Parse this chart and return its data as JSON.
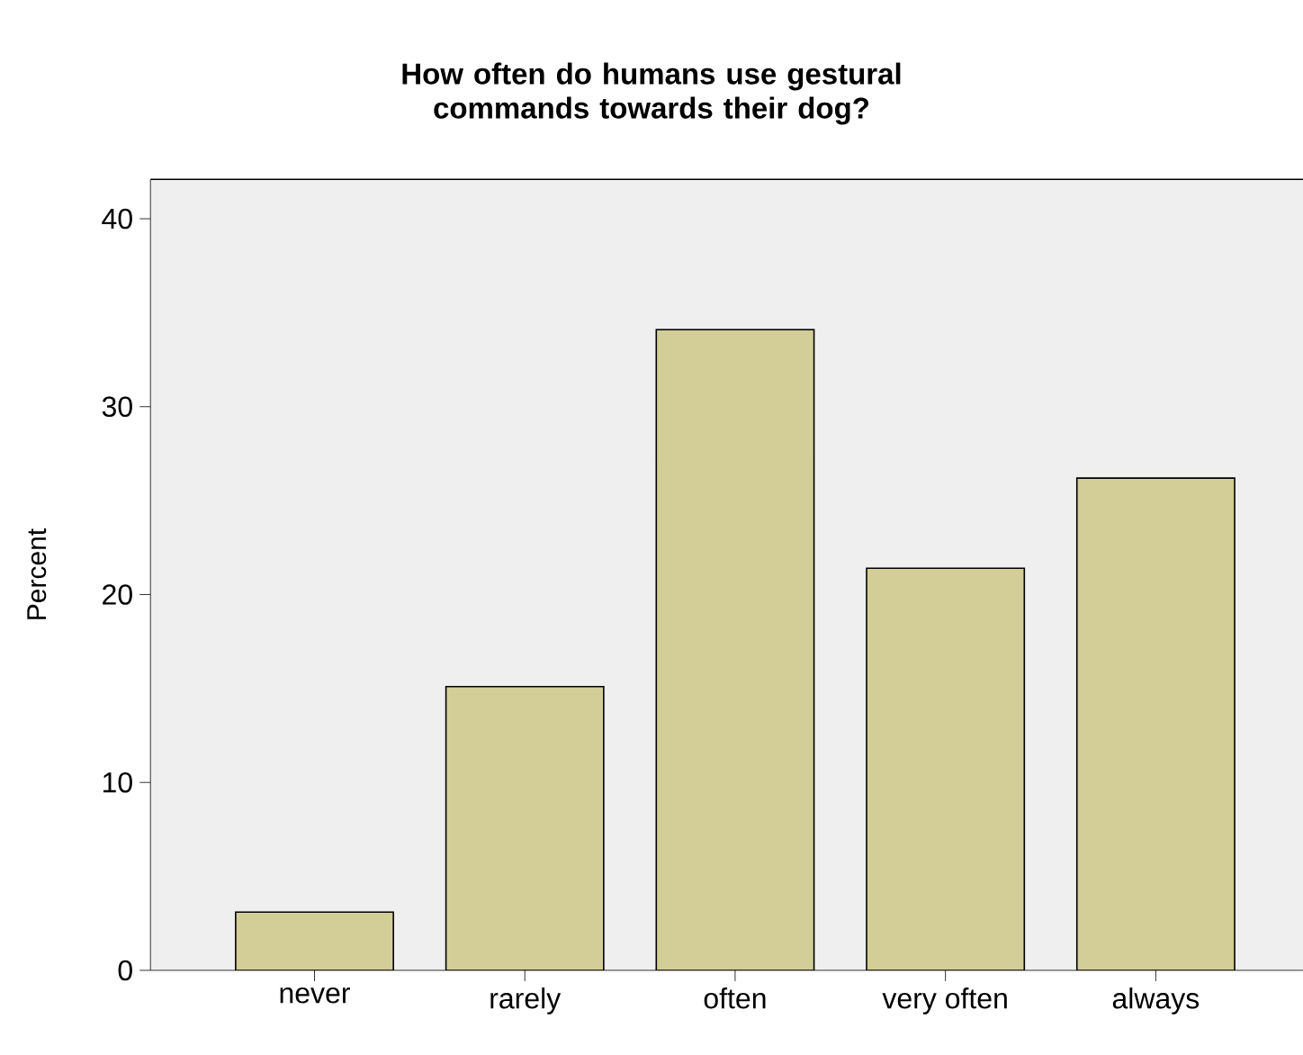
{
  "chart_data": {
    "type": "bar",
    "title": "How often do humans use gestural commands towards their dog?",
    "ylabel": "Percent",
    "categories": [
      "never",
      "rarely",
      "often",
      "very often",
      "always"
    ],
    "values": [
      3.1,
      15.1,
      34.1,
      21.4,
      26.2
    ],
    "color": "#d3ce97",
    "ylim": [
      0,
      42.1
    ],
    "yticks": [
      0,
      10,
      20,
      30,
      40
    ],
    "grid": false
  }
}
